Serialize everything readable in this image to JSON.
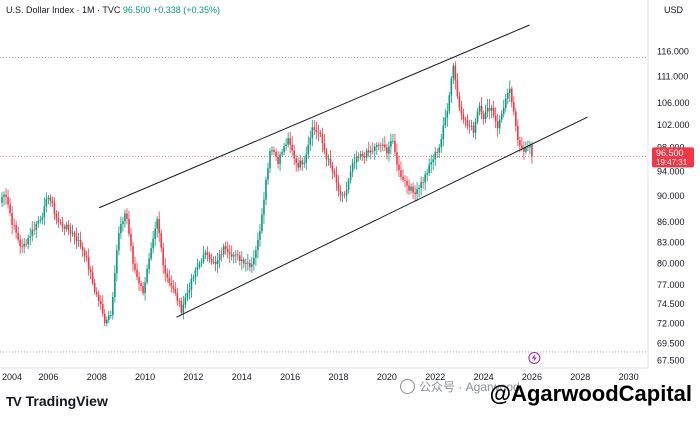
{
  "header": {
    "title": "U.S. Dollar Index · 1M · TVC",
    "price": "96.500",
    "change": "+0.338 (+0.35%)"
  },
  "brand": {
    "name": "TradingView",
    "logo": "TV"
  },
  "watermark": {
    "text": "公众号 · Agarwood"
  },
  "handle": "@AgarwoodCapital",
  "current_price": {
    "value": "96.500",
    "countdown": "19:47:31",
    "color": "#f23645"
  },
  "colors": {
    "up": "#089981",
    "down": "#f23645",
    "channel": "#131722",
    "axis_text": "#131722"
  },
  "flash_icon": "lightning-icon",
  "chart_data": {
    "type": "candlestick",
    "currency_label": "USD",
    "x_ticks": [
      "2004",
      "2006",
      "2008",
      "2010",
      "2012",
      "2014",
      "2016",
      "2018",
      "2020",
      "2022",
      "2024",
      "2026",
      "2028",
      "2030"
    ],
    "y_ticks": [
      "116.000",
      "111.000",
      "106.000",
      "102.000",
      "98.000",
      "94.000",
      "90.000",
      "86.000",
      "83.000",
      "80.000",
      "77.000",
      "74.500",
      "72.000",
      "69.500",
      "67.500"
    ],
    "xlim": [
      2004,
      2030.8
    ],
    "ylim": [
      66.6,
      123
    ],
    "log_scale": true,
    "dotted_levels": [
      114.8,
      68.5
    ],
    "current_price": 96.5,
    "channel": {
      "upper": [
        [
          2008.1,
          88.2
        ],
        [
          2025.9,
          121.5
        ]
      ],
      "lower_left": [
        2011.3,
        72.8
      ],
      "lower_right": [
        2028.3,
        103.4
      ]
    },
    "anchors": [
      [
        2004.0,
        89
      ],
      [
        2004.2,
        91
      ],
      [
        2004.5,
        86
      ],
      [
        2004.9,
        82
      ],
      [
        2005.3,
        84.5
      ],
      [
        2005.8,
        87.5
      ],
      [
        2006.0,
        90.2
      ],
      [
        2006.4,
        86
      ],
      [
        2006.8,
        85
      ],
      [
        2007.1,
        84
      ],
      [
        2007.5,
        81.5
      ],
      [
        2007.9,
        76.5
      ],
      [
        2008.2,
        74
      ],
      [
        2008.3,
        72.2
      ],
      [
        2008.6,
        73.5
      ],
      [
        2008.9,
        84
      ],
      [
        2009.2,
        87.8
      ],
      [
        2009.5,
        80
      ],
      [
        2009.9,
        76
      ],
      [
        2010.3,
        82.5
      ],
      [
        2010.5,
        86.2
      ],
      [
        2010.8,
        79
      ],
      [
        2011.3,
        75.4
      ],
      [
        2011.5,
        73.8
      ],
      [
        2011.8,
        76.5
      ],
      [
        2012.3,
        80.5
      ],
      [
        2012.6,
        81.5
      ],
      [
        2012.9,
        79.6
      ],
      [
        2013.3,
        82.5
      ],
      [
        2013.7,
        81
      ],
      [
        2014.1,
        80.4
      ],
      [
        2014.4,
        79.8
      ],
      [
        2014.7,
        83.5
      ],
      [
        2015.0,
        92.5
      ],
      [
        2015.2,
        98.5
      ],
      [
        2015.5,
        95.8
      ],
      [
        2015.9,
        99.3
      ],
      [
        2016.3,
        95
      ],
      [
        2016.6,
        96
      ],
      [
        2016.9,
        101.5
      ],
      [
        2017.2,
        100.5
      ],
      [
        2017.5,
        96.5
      ],
      [
        2017.8,
        93.5
      ],
      [
        2018.1,
        89.5
      ],
      [
        2018.3,
        90.5
      ],
      [
        2018.6,
        95.2
      ],
      [
        2018.9,
        96.5
      ],
      [
        2019.3,
        97.2
      ],
      [
        2019.7,
        98.5
      ],
      [
        2020.0,
        97.5
      ],
      [
        2020.2,
        99.5
      ],
      [
        2020.5,
        94
      ],
      [
        2020.9,
        91.5
      ],
      [
        2021.1,
        90.5
      ],
      [
        2021.5,
        92.5
      ],
      [
        2021.9,
        96
      ],
      [
        2022.2,
        98.5
      ],
      [
        2022.5,
        105
      ],
      [
        2022.75,
        113.5
      ],
      [
        2022.95,
        106
      ],
      [
        2023.3,
        102
      ],
      [
        2023.6,
        101
      ],
      [
        2023.8,
        106
      ],
      [
        2024.0,
        103.5
      ],
      [
        2024.3,
        105.5
      ],
      [
        2024.6,
        101.5
      ],
      [
        2024.9,
        106.5
      ],
      [
        2025.1,
        108.2
      ],
      [
        2025.4,
        99.5
      ],
      [
        2025.7,
        97.5
      ],
      [
        2025.9,
        98.2
      ],
      [
        2026.0,
        96.5
      ]
    ]
  }
}
